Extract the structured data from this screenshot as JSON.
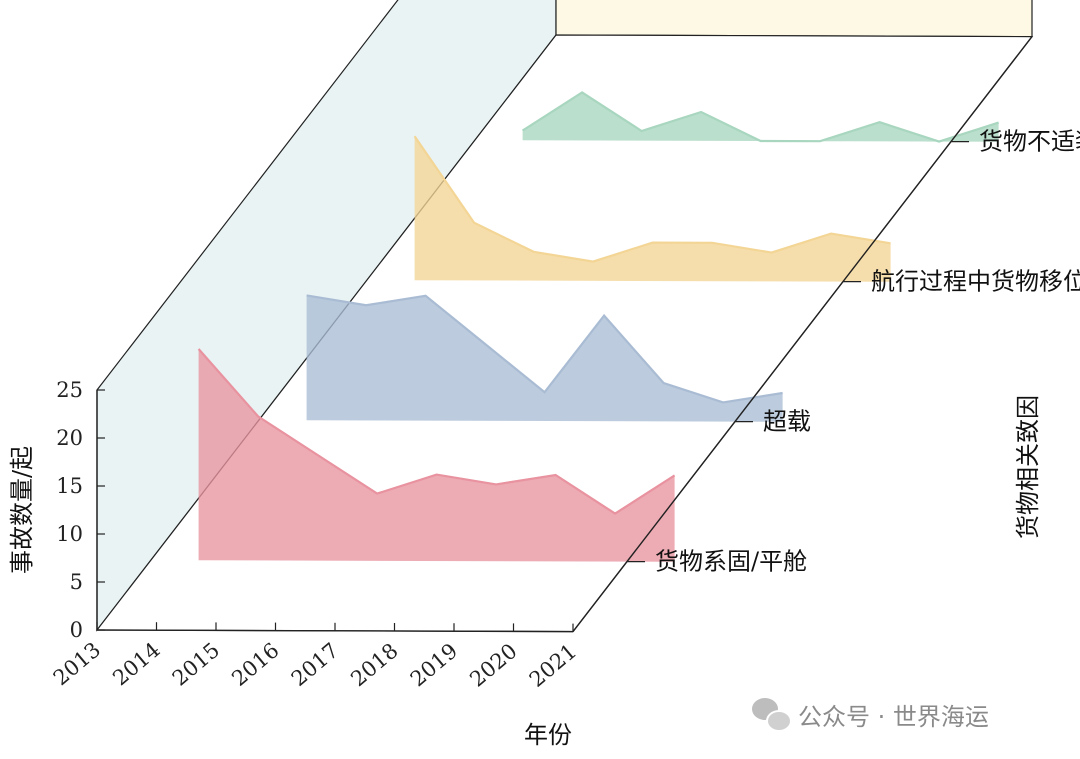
{
  "chart_data": {
    "type": "area",
    "style": "3d-stacked-area",
    "x": [
      "2013",
      "2014",
      "2015",
      "2016",
      "2017",
      "2018",
      "2019",
      "2020",
      "2021"
    ],
    "ylabel": "事故数量/起",
    "xlabel": "年份",
    "zlabel": "货物相关致因",
    "yticks": [
      0,
      5,
      10,
      15,
      20,
      25
    ],
    "ylim": [
      0,
      25
    ],
    "series": [
      {
        "name": "货物系固/平舱",
        "color": "#e8939f",
        "values": [
          22,
          15,
          11,
          7,
          9,
          8,
          9,
          5,
          9
        ]
      },
      {
        "name": "超载",
        "color": "#a9bcd3",
        "values": [
          13,
          12,
          13,
          8,
          3,
          11,
          4,
          2,
          3
        ]
      },
      {
        "name": "航行过程中货物移位",
        "color": "#f3d595",
        "values": [
          15,
          6,
          3,
          2,
          4,
          4,
          3,
          5,
          4
        ]
      },
      {
        "name": "货物不适装",
        "color": "#a8d6bf",
        "values": [
          1,
          5,
          1,
          3,
          0,
          0,
          2,
          0,
          2
        ]
      }
    ]
  },
  "watermark": {
    "text": "公众号 · 世界海运",
    "icon": "wechat-icon"
  }
}
